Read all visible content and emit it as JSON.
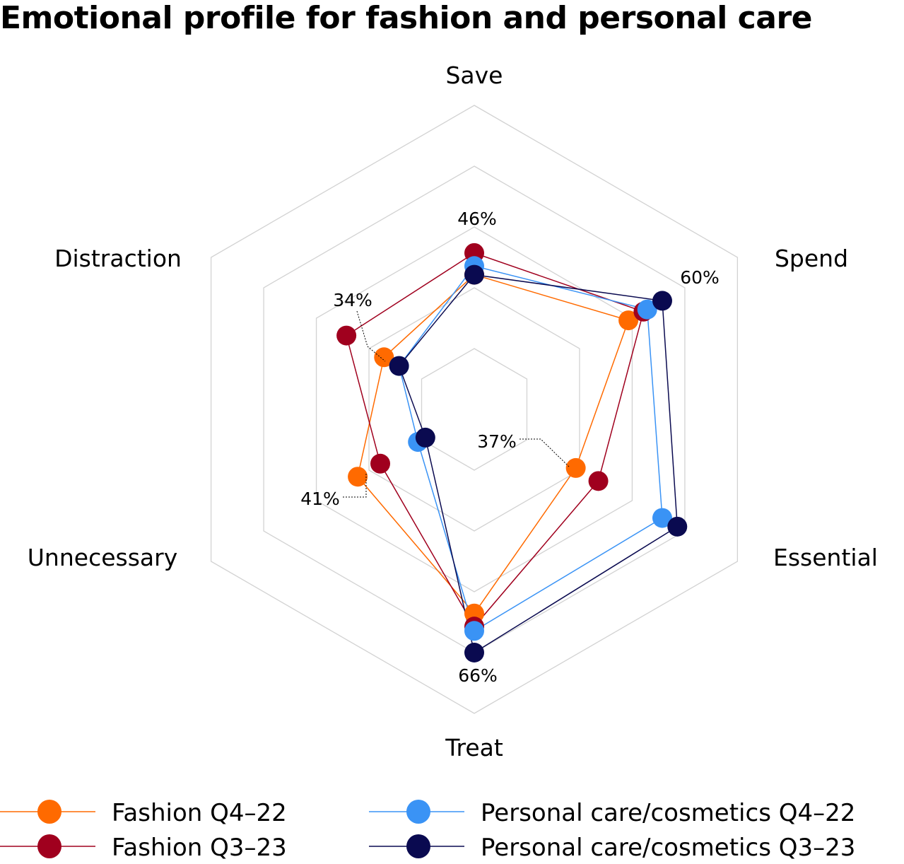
{
  "title": "Emotional profile for fashion and personal care",
  "chart_data": {
    "type": "radar",
    "title": "Emotional profile for fashion and personal care",
    "axes": [
      "Save",
      "Spend",
      "Essential",
      "Treat",
      "Unnecessary",
      "Distraction"
    ],
    "radial_range": [
      10,
      80
    ],
    "grid": true,
    "legend_position": "bottom",
    "series": [
      {
        "name": "Fashion Q4–22",
        "color": "#FF6A00",
        "values": [
          41,
          51,
          37,
          57,
          41,
          34
        ]
      },
      {
        "name": "Fashion Q3–23",
        "color": "#A0001E",
        "values": [
          46,
          55,
          43,
          60,
          35,
          44
        ]
      },
      {
        "name": "Personal care/cosmetics Q4–22",
        "color": "#3A93F5",
        "values": [
          43,
          56,
          60,
          61,
          25,
          30
        ]
      },
      {
        "name": "Personal care/cosmetics Q3–23",
        "color": "#0A0A50",
        "values": [
          41,
          60,
          64,
          66,
          23,
          30
        ]
      }
    ],
    "annotations": [
      {
        "axis": 0,
        "series": 1,
        "text": "46%"
      },
      {
        "axis": 1,
        "series": 3,
        "text": "60%"
      },
      {
        "axis": 2,
        "series": 0,
        "text": "37%"
      },
      {
        "axis": 3,
        "series": 3,
        "text": "66%"
      },
      {
        "axis": 4,
        "series": 0,
        "text": "41%"
      },
      {
        "axis": 5,
        "series": 0,
        "text": "34%"
      }
    ]
  }
}
